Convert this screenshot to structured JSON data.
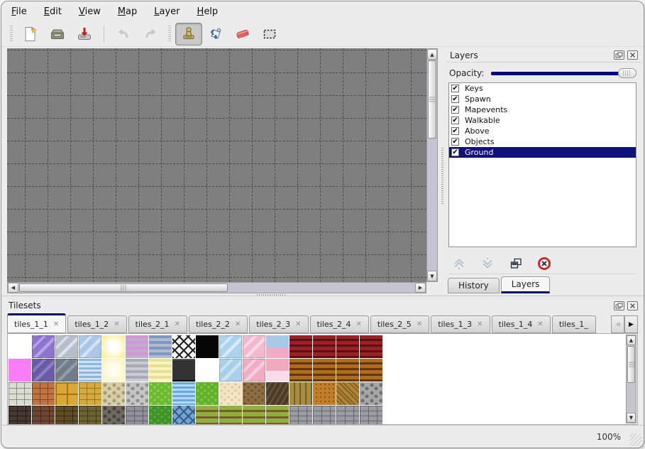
{
  "menubar": {
    "items": [
      {
        "label": "File"
      },
      {
        "label": "Edit"
      },
      {
        "label": "View"
      },
      {
        "label": "Map"
      },
      {
        "label": "Layer"
      },
      {
        "label": "Help"
      }
    ]
  },
  "toolbar": {
    "buttons": [
      {
        "type": "handle"
      },
      {
        "type": "button",
        "name": "new-map",
        "icon": "new-file",
        "enabled": true
      },
      {
        "type": "button",
        "name": "open-map",
        "icon": "open",
        "enabled": true
      },
      {
        "type": "button",
        "name": "save-map",
        "icon": "save",
        "enabled": true
      },
      {
        "type": "separator"
      },
      {
        "type": "button",
        "name": "undo",
        "icon": "undo",
        "enabled": false
      },
      {
        "type": "button",
        "name": "redo",
        "icon": "redo",
        "enabled": false
      },
      {
        "type": "handle"
      },
      {
        "type": "button",
        "name": "stamp-tool",
        "icon": "stamp",
        "enabled": true,
        "active": true
      },
      {
        "type": "button",
        "name": "fill-tool",
        "icon": "fill",
        "enabled": true
      },
      {
        "type": "button",
        "name": "eraser-tool",
        "icon": "eraser",
        "enabled": true
      },
      {
        "type": "button",
        "name": "select-tool",
        "icon": "select",
        "enabled": true
      }
    ]
  },
  "layers_panel": {
    "title": "Layers",
    "opacity_label": "Opacity:",
    "opacity_percent": 100,
    "items": [
      {
        "label": "Keys",
        "checked": true,
        "selected": false
      },
      {
        "label": "Spawn",
        "checked": true,
        "selected": false
      },
      {
        "label": "Mapevents",
        "checked": true,
        "selected": false
      },
      {
        "label": "Walkable",
        "checked": true,
        "selected": false
      },
      {
        "label": "Above",
        "checked": true,
        "selected": false
      },
      {
        "label": "Objects",
        "checked": true,
        "selected": false
      },
      {
        "label": "Ground",
        "checked": true,
        "selected": true
      }
    ],
    "actions": [
      "move-layer-up",
      "move-layer-down",
      "duplicate-layer",
      "delete-layer"
    ],
    "tabs": [
      {
        "label": "History",
        "active": false
      },
      {
        "label": "Layers",
        "active": true
      }
    ]
  },
  "tilesets_panel": {
    "title": "Tilesets",
    "tabs": [
      {
        "label": "tiles_1_1",
        "active": true
      },
      {
        "label": "tiles_1_2",
        "active": false
      },
      {
        "label": "tiles_2_1",
        "active": false
      },
      {
        "label": "tiles_2_2",
        "active": false
      },
      {
        "label": "tiles_2_3",
        "active": false
      },
      {
        "label": "tiles_2_4",
        "active": false
      },
      {
        "label": "tiles_2_5",
        "active": false
      },
      {
        "label": "tiles_1_3",
        "active": false
      },
      {
        "label": "tiles_1_4",
        "active": false
      },
      {
        "label": "tiles_1_",
        "active": false,
        "truncated": true
      }
    ],
    "palette_rows": [
      [
        {
          "p": "plain",
          "a": "#ffffff"
        },
        {
          "p": "glass",
          "a": "#8d74cf",
          "b": "#c4b2ee"
        },
        {
          "p": "glass",
          "a": "#b6bec9",
          "b": "#e9edf3"
        },
        {
          "p": "glass",
          "a": "#a9c8e9",
          "b": "#e2eefa"
        },
        {
          "p": "glow",
          "a": "#f9f1a2",
          "b": "#ffffff"
        },
        {
          "p": "hstripe",
          "a": "#d993d9",
          "b": "#b9b3ca"
        },
        {
          "p": "hstripe",
          "a": "#8099c4",
          "b": "#b3bcca"
        },
        {
          "p": "lattice",
          "a": "#f5f5f5",
          "b": "#222222"
        },
        {
          "p": "plain",
          "a": "#050505"
        },
        {
          "p": "glass",
          "a": "#abd2ef",
          "b": "#e4f2fc"
        },
        {
          "p": "glass",
          "a": "#f3b8ce",
          "b": "#fce6ef"
        },
        {
          "p": "drape",
          "a": "#a9c9e9",
          "b": "#f2aac6"
        },
        {
          "p": "curtain",
          "a": "#9e2025",
          "b": "#571013"
        },
        {
          "p": "curtain",
          "a": "#9e2025",
          "b": "#571013"
        },
        {
          "p": "curtain",
          "a": "#9e2025",
          "b": "#571013"
        },
        {
          "p": "curtain",
          "a": "#9e2025",
          "b": "#571013"
        }
      ],
      [
        {
          "p": "plain",
          "a": "#f97cf9"
        },
        {
          "p": "glass",
          "a": "#695ba5",
          "b": "#998bd0"
        },
        {
          "p": "glass",
          "a": "#707c88",
          "b": "#9ba7b3"
        },
        {
          "p": "water",
          "a": "#8fb5dd",
          "b": "#cde2f4"
        },
        {
          "p": "glow",
          "a": "#fbf5c6",
          "b": "#fffdef"
        },
        {
          "p": "hstripe",
          "a": "#a9a9b5",
          "b": "#cbcbd4"
        },
        {
          "p": "hstripe",
          "a": "#e9e295",
          "b": "#f7f3c2"
        },
        {
          "p": "metal",
          "a": "#333333",
          "b": "#555555"
        },
        {
          "p": "plain",
          "a": "#ffffff"
        },
        {
          "p": "glass",
          "a": "#a9cfe9",
          "b": "#d8ecf8"
        },
        {
          "p": "glass",
          "a": "#f2abc5",
          "b": "#fbdcea"
        },
        {
          "p": "drape",
          "a": "#f2a9c0",
          "b": "#fadbe9"
        },
        {
          "p": "curtain",
          "a": "#b06b1b",
          "b": "#5f370e"
        },
        {
          "p": "curtain",
          "a": "#b06b1b",
          "b": "#5f370e"
        },
        {
          "p": "curtain",
          "a": "#b06b1b",
          "b": "#5f370e"
        },
        {
          "p": "curtain",
          "a": "#b06b1b",
          "b": "#5f370e"
        }
      ],
      [
        {
          "p": "stone",
          "a": "#dddcd3",
          "b": "#8c8b82"
        },
        {
          "p": "stone",
          "a": "#c27440",
          "b": "#7e4520"
        },
        {
          "p": "grid4",
          "a": "#d9a733",
          "b": "#a37414"
        },
        {
          "p": "stone",
          "a": "#d6ab3e",
          "b": "#96761c"
        },
        {
          "p": "pebble",
          "a": "#d6cda9",
          "b": "#a79b76"
        },
        {
          "p": "pebble",
          "a": "#c5c5c5",
          "b": "#8e8e8e"
        },
        {
          "p": "grass",
          "a": "#6cba31",
          "b": "#93d856"
        },
        {
          "p": "water",
          "a": "#66a9e2",
          "b": "#b4d9f4"
        },
        {
          "p": "grass",
          "a": "#63b12a",
          "b": "#8bd04b"
        },
        {
          "p": "speck",
          "a": "#f3e4c4",
          "b": "#ddc49a"
        },
        {
          "p": "speck",
          "a": "#8d6d43",
          "b": "#66492a"
        },
        {
          "p": "diagwood",
          "a": "#4b3b27",
          "b": "#6e583b"
        },
        {
          "p": "planks",
          "a": "#a58d41",
          "b": "#756025"
        },
        {
          "p": "weave",
          "a": "#c07e2a",
          "b": "#8a5715"
        },
        {
          "p": "herring",
          "a": "#b1853a",
          "b": "#85601f"
        },
        {
          "p": "pebble",
          "a": "#a7a7a7",
          "b": "#6f6f6f"
        }
      ],
      [
        {
          "p": "brick",
          "a": "#453931",
          "b": "#241c17"
        },
        {
          "p": "brick",
          "a": "#6e4632",
          "b": "#41281a"
        },
        {
          "p": "brick",
          "a": "#5f4c25",
          "b": "#362a10"
        },
        {
          "p": "brick",
          "a": "#6d6233",
          "b": "#413a1a"
        },
        {
          "p": "pebble",
          "a": "#6e6a61",
          "b": "#45423a"
        },
        {
          "p": "brick",
          "a": "#90909a",
          "b": "#5f5f68"
        },
        {
          "p": "grass",
          "a": "#3f9228",
          "b": "#61b53e"
        },
        {
          "p": "lattice",
          "a": "#76a2cf",
          "b": "#2f5e8e"
        },
        {
          "p": "grassrow",
          "a": "#8fb03b",
          "b": "#7a5a33"
        },
        {
          "p": "grassrow",
          "a": "#8fb03b",
          "b": "#7a5a33"
        },
        {
          "p": "grassrow",
          "a": "#8fb03b",
          "b": "#7a5a33"
        },
        {
          "p": "grassrow",
          "a": "#8fb03b",
          "b": "#7a5a33"
        },
        {
          "p": "brick",
          "a": "#9b9ba3",
          "b": "#66666e"
        },
        {
          "p": "brick",
          "a": "#9b9ba3",
          "b": "#66666e"
        },
        {
          "p": "brick",
          "a": "#9b9ba3",
          "b": "#66666e"
        },
        {
          "p": "brick",
          "a": "#9b9ba3",
          "b": "#66666e"
        }
      ]
    ]
  },
  "statusbar": {
    "zoom": "100%"
  },
  "colors": {
    "selection": "#0f0f7d",
    "opacity_track": "#00008b",
    "tab_accent": "#0d0d6b",
    "canvas": "#7f7f7f",
    "grid_line": "#4b4b4b"
  }
}
